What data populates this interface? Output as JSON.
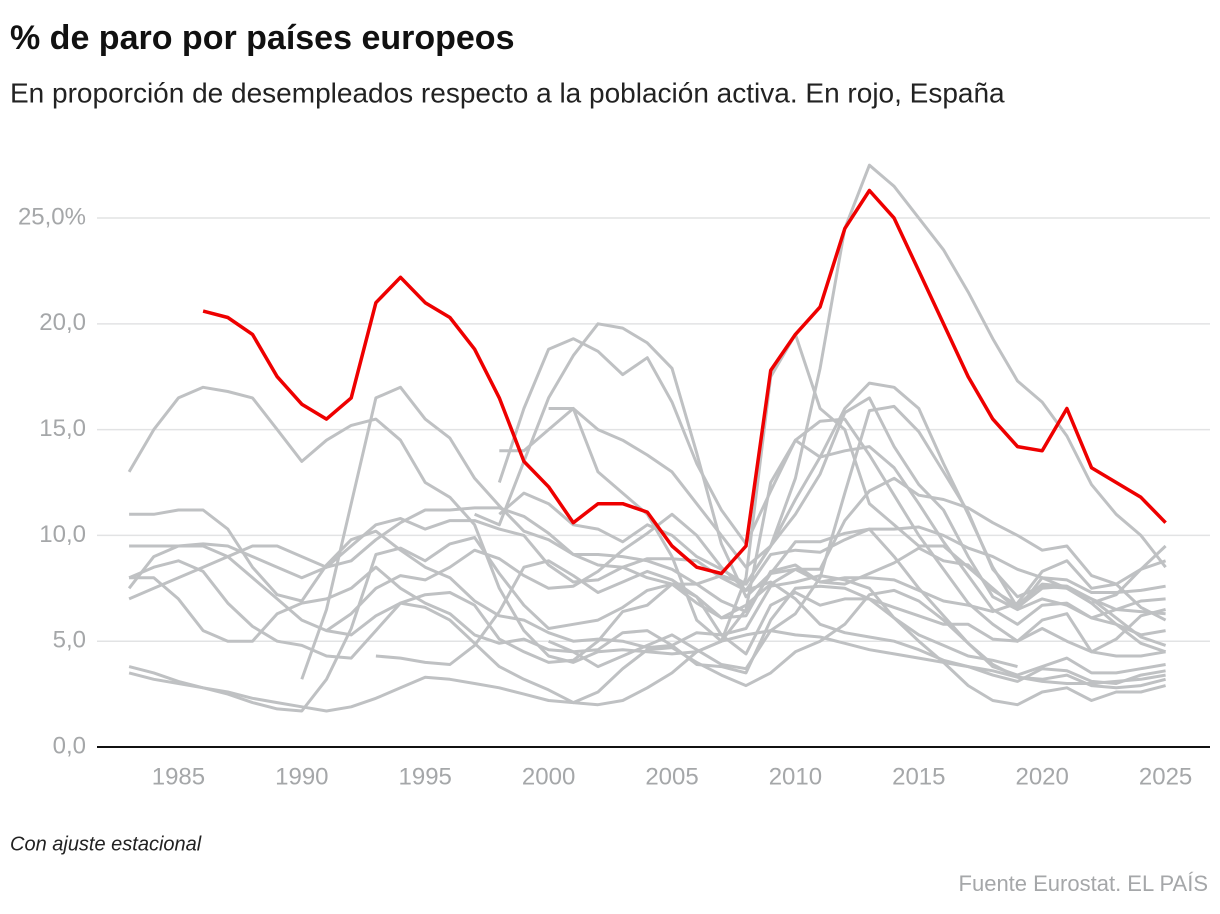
{
  "chart_data": {
    "type": "line",
    "title": "% de paro por países europeos",
    "subtitle": "En proporción de desempleados respecto a la población activa. En rojo, España",
    "note": "Con ajuste estacional",
    "source": "Fuente Eurostat. EL PAÍS",
    "x": [
      1983,
      1984,
      1985,
      1986,
      1987,
      1988,
      1989,
      1990,
      1991,
      1992,
      1993,
      1994,
      1995,
      1996,
      1997,
      1998,
      1999,
      2000,
      2001,
      2002,
      2003,
      2004,
      2005,
      2006,
      2007,
      2008,
      2009,
      2010,
      2011,
      2012,
      2013,
      2014,
      2015,
      2016,
      2017,
      2018,
      2019,
      2020,
      2021,
      2022,
      2023,
      2024,
      2025
    ],
    "xlim": [
      1981.7,
      2026.8
    ],
    "xticks": [
      1985,
      1990,
      1995,
      2000,
      2005,
      2010,
      2015,
      2020,
      2025
    ],
    "ylim": [
      0,
      28.5
    ],
    "yticks": [
      {
        "value": 0,
        "label": "0,0"
      },
      {
        "value": 5,
        "label": "5,0"
      },
      {
        "value": 10,
        "label": "10,0"
      },
      {
        "value": 15,
        "label": "15,0"
      },
      {
        "value": 20,
        "label": "20,0"
      },
      {
        "value": 25,
        "label": "25,0%"
      }
    ],
    "grid": true,
    "series": [
      {
        "color": "#bfc1c3",
        "values": [
          null,
          null,
          null,
          null,
          null,
          null,
          null,
          null,
          null,
          null,
          null,
          null,
          null,
          null,
          null,
          11,
          12,
          11.5,
          10.5,
          10.3,
          9.7,
          10.5,
          10,
          9,
          8.4,
          7.7,
          9.5,
          12.7,
          17.9,
          24.5,
          27.5,
          26.5,
          25,
          23.5,
          21.5,
          19.3,
          17.3,
          16.3,
          14.7,
          12.4,
          11,
          10,
          8.5
        ]
      },
      {
        "color": "#bfc1c3",
        "values": [
          13,
          15,
          16.5,
          17,
          16.8,
          16.5,
          15,
          13.5,
          14.5,
          15.2,
          15.5,
          14.5,
          12.5,
          11.8,
          10.5,
          7.5,
          5.5,
          4.3,
          4,
          4.5,
          4.6,
          4.5,
          4.4,
          4.5,
          5,
          6.5,
          12.5,
          14.5,
          15.4,
          15.5,
          13.8,
          11.9,
          10,
          8.4,
          6.8,
          5.8,
          5,
          6,
          6.3,
          4.5,
          4.3,
          4.3,
          4.5
        ]
      },
      {
        "color": "#bfc1c3",
        "values": [
          null,
          null,
          null,
          null,
          null,
          null,
          null,
          3.2,
          6.5,
          11.5,
          16.5,
          17,
          15.5,
          14.6,
          12.7,
          11.4,
          10.2,
          9.8,
          9.1,
          9.1,
          9,
          8.8,
          8.4,
          7.7,
          6.9,
          6.4,
          8.2,
          8.4,
          7.8,
          7.7,
          8.2,
          8.7,
          9.4,
          8.8,
          8.6,
          7.4,
          6.7,
          7.7,
          7.6,
          6.8,
          7.2,
          8.4,
          9.5
        ]
      },
      {
        "color": "#bfc1c3",
        "values": [
          null,
          null,
          null,
          null,
          null,
          null,
          null,
          null,
          null,
          null,
          null,
          null,
          null,
          null,
          11,
          10.5,
          13.5,
          16.5,
          18.5,
          20,
          19.8,
          19.1,
          17.9,
          13.9,
          9.6,
          7.1,
          8.2,
          9.7,
          9.7,
          10.1,
          10.3,
          9,
          7.5,
          6.2,
          4.9,
          3.9,
          3.3,
          3.2,
          3.4,
          2.9,
          2.8,
          2.9,
          3.2
        ]
      },
      {
        "color": "#bfc1c3",
        "values": [
          null,
          null,
          null,
          null,
          null,
          null,
          null,
          null,
          null,
          null,
          null,
          null,
          null,
          null,
          null,
          12.5,
          16,
          18.8,
          19.3,
          18.7,
          17.6,
          18.4,
          16.3,
          13.4,
          11.2,
          9.6,
          12.1,
          14.5,
          13.7,
          14,
          14.2,
          13.2,
          11.5,
          9.7,
          8.1,
          6.5,
          5.8,
          6.7,
          6.8,
          6.1,
          5.8,
          5.3,
          5.5
        ]
      },
      {
        "color": "#bfc1c3",
        "values": [
          null,
          null,
          null,
          null,
          null,
          null,
          null,
          null,
          null,
          null,
          null,
          null,
          null,
          null,
          null,
          14,
          14,
          15,
          16,
          13,
          12,
          11,
          9,
          6,
          5,
          8,
          17.5,
          19.5,
          16,
          15,
          11.5,
          10.5,
          9.5,
          9.5,
          8.5,
          7.5,
          6.5,
          8,
          7.5,
          7,
          6.5,
          6.9,
          7
        ]
      },
      {
        "color": "#bfc1c3",
        "values": [
          7.5,
          9,
          9.5,
          9.6,
          9.5,
          9,
          8.5,
          8,
          8.5,
          9.5,
          10.5,
          10.8,
          10.3,
          10.7,
          10.7,
          10.3,
          10,
          8.6,
          7.8,
          7.9,
          8.5,
          8.9,
          8.9,
          8.8,
          8,
          7.4,
          9.1,
          9.3,
          9.2,
          9.8,
          10.3,
          10.3,
          10.4,
          10,
          9.4,
          9,
          8.4,
          8,
          7.9,
          7.3,
          7.3,
          7.4,
          7.6
        ]
      },
      {
        "color": "#bfc1c3",
        "values": [
          7,
          7.5,
          8,
          8.5,
          9,
          9.5,
          9.5,
          9,
          8.5,
          8.8,
          9.8,
          10.6,
          11.2,
          11.2,
          11.3,
          11.3,
          10.9,
          10.1,
          9.1,
          8.6,
          8.5,
          8,
          7.7,
          6.8,
          6.1,
          6.7,
          7.7,
          8.4,
          8.4,
          10.7,
          12.1,
          12.7,
          11.9,
          11.7,
          11.3,
          10.6,
          10,
          9.3,
          9.5,
          8.1,
          7.7,
          6.6,
          6
        ]
      },
      {
        "color": "#bfc1c3",
        "values": [
          null,
          null,
          null,
          null,
          null,
          null,
          null,
          null,
          5.5,
          6.3,
          7.5,
          8.1,
          7.9,
          8.5,
          9.3,
          8.9,
          8.1,
          7.5,
          7.6,
          8.3,
          9.3,
          10.1,
          11,
          10,
          8.5,
          7.4,
          7.8,
          7,
          5.8,
          5.4,
          5.2,
          5,
          4.6,
          4.1,
          3.8,
          3.4,
          3.1,
          3.7,
          3.6,
          3.1,
          3,
          3.4,
          3.6
        ]
      },
      {
        "color": "#bfc1c3",
        "values": [
          11,
          11,
          11.2,
          11.2,
          10.3,
          8.5,
          7.2,
          6.9,
          8.6,
          9.8,
          10.2,
          9.3,
          8.5,
          8,
          6.9,
          6.2,
          6,
          5.4,
          5,
          5.1,
          5,
          4.7,
          4.8,
          5.4,
          5.3,
          5.6,
          7.6,
          7.8,
          8.1,
          7.9,
          7.5,
          6.1,
          5.3,
          4.8,
          4.3,
          4.1,
          3.8,
          null,
          null,
          null,
          null,
          null,
          null
        ]
      },
      {
        "color": "#bfc1c3",
        "values": [
          9.5,
          9.5,
          9.5,
          9.5,
          9,
          8,
          7,
          6,
          5.5,
          5.3,
          6.2,
          6.8,
          6.6,
          6,
          4.9,
          3.8,
          3.2,
          2.7,
          2.1,
          2.6,
          3.7,
          4.6,
          4.7,
          4,
          3.4,
          2.9,
          3.5,
          4.5,
          5,
          5.8,
          7.2,
          7.4,
          6.9,
          6,
          4.9,
          3.8,
          3.4,
          3.8,
          4.2,
          3.5,
          3.5,
          3.7,
          3.9
        ]
      },
      {
        "color": "#bfc1c3",
        "values": [
          8,
          8,
          7,
          5.5,
          5,
          5,
          6.3,
          6.8,
          7,
          7.5,
          8.5,
          7.5,
          6.8,
          6.3,
          5.3,
          4.9,
          5.1,
          4.6,
          4.5,
          4.6,
          5.4,
          5.5,
          4.8,
          3.9,
          3.8,
          3.5,
          6,
          7.5,
          7.6,
          7.5,
          7,
          6.6,
          6.2,
          5.8,
          5.8,
          5.1,
          5,
          5.6,
          5,
          4.5,
          5.1,
          6.2,
          6.5
        ]
      },
      {
        "color": "#bfc1c3",
        "values": [
          3.5,
          3.2,
          3,
          2.8,
          2.5,
          2.1,
          1.8,
          1.7,
          3.2,
          5.6,
          9.1,
          9.4,
          8.8,
          9.6,
          9.9,
          8.2,
          6.7,
          5.6,
          5.8,
          6,
          6.6,
          7.4,
          7.7,
          7.1,
          6.1,
          6.2,
          8.3,
          8.6,
          7.8,
          8,
          8,
          7.9,
          7.4,
          6.9,
          6.7,
          6.4,
          6.8,
          8.3,
          8.8,
          7.5,
          7.7,
          8.4,
          8.8
        ]
      },
      {
        "color": "#bfc1c3",
        "values": [
          3.8,
          3.5,
          3.1,
          2.8,
          2.6,
          2.3,
          2.1,
          1.9,
          1.7,
          1.9,
          2.3,
          2.8,
          3.3,
          3.2,
          3,
          2.8,
          2.5,
          2.2,
          2.1,
          2,
          2.2,
          2.8,
          3.5,
          4.5,
          5,
          5.3,
          5.5,
          5.3,
          5.2,
          4.9,
          4.6,
          4.4,
          4.2,
          4,
          3.8,
          3.6,
          3.3,
          3.1,
          3,
          3,
          3.1,
          3.2,
          3.4
        ]
      },
      {
        "color": "#bfc1c3",
        "values": [
          8,
          8.5,
          8.8,
          8.3,
          6.8,
          5.7,
          5,
          4.8,
          4.3,
          4.2,
          5.5,
          6.8,
          7.2,
          7.3,
          6.7,
          5.1,
          4.5,
          4,
          4.1,
          5,
          6.4,
          6.7,
          7.7,
          7.7,
          8.1,
          7.7,
          9.5,
          11,
          12.9,
          15.8,
          16.5,
          14.2,
          12.4,
          11.2,
          9,
          7.1,
          6.5,
          7,
          6.7,
          6.1,
          6.5,
          6.4,
          6.3
        ]
      },
      {
        "color": "#bfc1c3",
        "values": [
          null,
          null,
          null,
          null,
          null,
          null,
          null,
          null,
          null,
          null,
          null,
          null,
          null,
          null,
          null,
          null,
          null,
          16,
          16,
          15,
          14.5,
          13.8,
          13,
          11.5,
          10,
          8.5,
          9.5,
          11.7,
          13.7,
          16,
          17.2,
          17,
          16,
          13.4,
          11,
          8.5,
          6.6,
          7.5,
          7.6,
          7,
          6.1,
          5.2,
          4.8
        ]
      },
      {
        "color": "#bfc1c3",
        "values": [
          null,
          null,
          null,
          null,
          null,
          null,
          null,
          null,
          null,
          null,
          null,
          null,
          null,
          null,
          null,
          null,
          null,
          5,
          4.5,
          3.8,
          4.3,
          4.8,
          5.3,
          4.6,
          3.9,
          3.7,
          5.5,
          6.3,
          8,
          12,
          15.9,
          16.1,
          14.9,
          13,
          11.1,
          8.4,
          7.1,
          7.6,
          7.5,
          6.8,
          5.8,
          4.9,
          4.5
        ]
      },
      {
        "color": "#bfc1c3",
        "values": [
          null,
          null,
          null,
          null,
          null,
          null,
          null,
          null,
          null,
          null,
          4.3,
          4.2,
          4,
          3.9,
          4.8,
          6.4,
          8.5,
          8.8,
          8.1,
          7.3,
          7.8,
          8.3,
          7.9,
          7.1,
          5.3,
          4.4,
          6.7,
          7.3,
          6.7,
          7,
          7,
          6.1,
          5,
          4,
          2.9,
          2.2,
          2,
          2.6,
          2.8,
          2.2,
          2.6,
          2.6,
          2.9
        ]
      },
      {
        "color": "#ee0000",
        "values": [
          null,
          null,
          null,
          20.6,
          20.3,
          19.5,
          17.5,
          16.2,
          15.5,
          16.5,
          21,
          22.2,
          21,
          20.3,
          18.8,
          16.5,
          13.5,
          12.3,
          10.6,
          11.5,
          11.5,
          11.1,
          9.5,
          8.5,
          8.2,
          9.5,
          17.8,
          19.5,
          20.8,
          24.5,
          26.3,
          25,
          22.5,
          20,
          17.5,
          15.5,
          14.2,
          14,
          16,
          13.2,
          12.5,
          11.8,
          10.6
        ]
      }
    ]
  }
}
